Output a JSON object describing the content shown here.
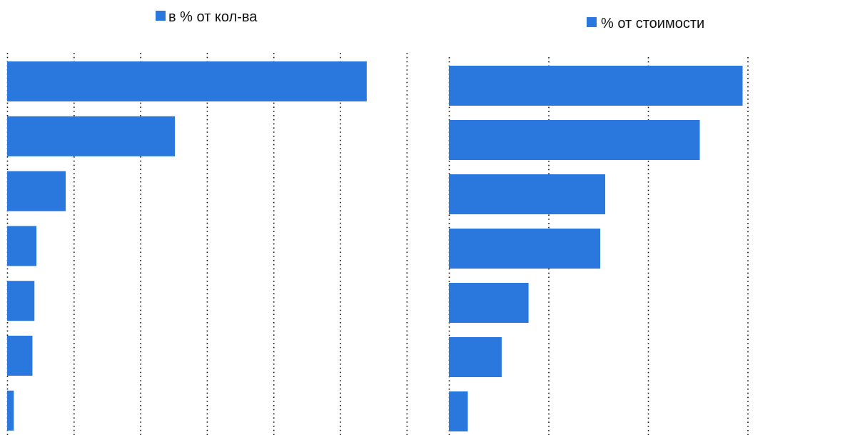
{
  "colors": {
    "bar": "#2A77DE",
    "grid": "#111111"
  },
  "chart_data": [
    {
      "type": "bar",
      "orientation": "horizontal",
      "legend": "в % от кол-ва",
      "legend_position": "top-center",
      "grid": true,
      "xlim": [
        0,
        6
      ],
      "values": [
        5.4,
        2.52,
        0.88,
        0.44,
        0.41,
        0.38,
        0.1
      ]
    },
    {
      "type": "bar",
      "orientation": "horizontal",
      "legend": "% от стоимости",
      "legend_position": "top-center",
      "grid": true,
      "xlim": [
        0,
        4
      ],
      "values": [
        2.95,
        2.52,
        1.57,
        1.52,
        0.8,
        0.53,
        0.19
      ]
    }
  ]
}
